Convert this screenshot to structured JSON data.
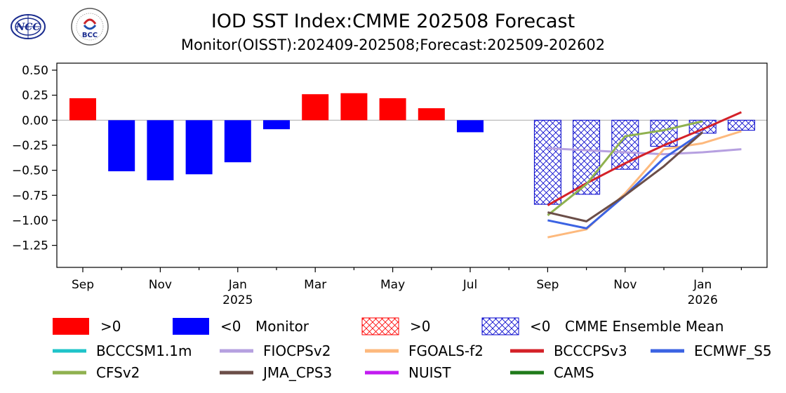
{
  "logos": {
    "left_text": "NCC",
    "right_text": "BCC"
  },
  "chart_data": {
    "type": "bar",
    "title": "IOD SST Index:CMME 202508 Forecast",
    "subtitle": "Monitor(OISST):202409-202508;Forecast:202509-202602",
    "xlabel": "",
    "ylabel": "",
    "ylim": [
      -1.47,
      0.57
    ],
    "yticks": [
      0.5,
      0.25,
      0.0,
      -0.25,
      -0.5,
      -0.75,
      -1.0,
      -1.25
    ],
    "ytick_labels": [
      "0.50",
      "0.25",
      "0.00",
      "−0.25",
      "−0.50",
      "−0.75",
      "−1.00",
      "−1.25"
    ],
    "months": [
      "2024-09",
      "2024-10",
      "2024-11",
      "2024-12",
      "2025-01",
      "2025-02",
      "2025-03",
      "2025-04",
      "2025-05",
      "2025-06",
      "2025-07",
      "2025-08",
      "2025-09",
      "2025-10",
      "2025-11",
      "2025-12",
      "2026-01",
      "2026-02"
    ],
    "xtick_labels": [
      {
        "month": "2024-09",
        "label": "Sep",
        "label2": ""
      },
      {
        "month": "2024-11",
        "label": "Nov",
        "label2": ""
      },
      {
        "month": "2025-01",
        "label": "Jan",
        "label2": "2025"
      },
      {
        "month": "2025-03",
        "label": "Mar",
        "label2": ""
      },
      {
        "month": "2025-05",
        "label": "May",
        "label2": ""
      },
      {
        "month": "2025-07",
        "label": "Jul",
        "label2": ""
      },
      {
        "month": "2025-09",
        "label": "Sep",
        "label2": ""
      },
      {
        "month": "2025-11",
        "label": "Nov",
        "label2": ""
      },
      {
        "month": "2026-01",
        "label": "Jan",
        "label2": "2026"
      }
    ],
    "monitor": {
      "months": [
        "2024-09",
        "2024-10",
        "2024-11",
        "2024-12",
        "2025-01",
        "2025-02",
        "2025-03",
        "2025-04",
        "2025-05",
        "2025-06",
        "2025-07",
        "2025-08"
      ],
      "values": [
        0.22,
        -0.51,
        -0.6,
        -0.54,
        -0.42,
        -0.09,
        0.26,
        0.27,
        0.22,
        0.12,
        -0.12,
        0.0
      ],
      "pos_color": "#ff0000",
      "neg_color": "#0000ff"
    },
    "ensemble_mean": {
      "months": [
        "2025-09",
        "2025-10",
        "2025-11",
        "2025-12",
        "2026-01",
        "2026-02"
      ],
      "values": [
        -0.84,
        -0.74,
        -0.49,
        -0.26,
        -0.13,
        -0.1
      ],
      "pos_color": "#ff0000",
      "neg_color": "#0000cc"
    },
    "series": [
      {
        "name": "BCCCSM1.1m",
        "color": "#1fc4c9",
        "months": [],
        "values": []
      },
      {
        "name": "FIOCPSv2",
        "color": "#b6a0e0",
        "months": [
          "2025-09",
          "2025-10",
          "2025-11",
          "2025-12",
          "2026-01",
          "2026-02"
        ],
        "values": [
          -0.28,
          -0.3,
          -0.32,
          -0.34,
          -0.32,
          -0.29
        ]
      },
      {
        "name": "FGOALS-f2",
        "color": "#fdb97d",
        "months": [
          "2025-09",
          "2025-10",
          "2025-11",
          "2025-12",
          "2026-01",
          "2026-02"
        ],
        "values": [
          -1.17,
          -1.09,
          -0.73,
          -0.29,
          -0.23,
          -0.11
        ]
      },
      {
        "name": "BCCCPSv3",
        "color": "#d42128",
        "months": [
          "2025-09",
          "2025-10",
          "2025-11",
          "2025-12",
          "2026-01",
          "2026-02"
        ],
        "values": [
          -0.85,
          -0.63,
          -0.43,
          -0.25,
          -0.09,
          0.08
        ]
      },
      {
        "name": "ECMWF_S5",
        "color": "#3b63e3",
        "months": [
          "2025-09",
          "2025-10",
          "2025-11",
          "2025-12",
          "2026-01"
        ],
        "values": [
          -1.0,
          -1.08,
          -0.75,
          -0.38,
          -0.12
        ]
      },
      {
        "name": "CFSv2",
        "color": "#8fb14f",
        "months": [
          "2025-09",
          "2025-10",
          "2025-11",
          "2025-12",
          "2026-01"
        ],
        "values": [
          -0.95,
          -0.64,
          -0.16,
          -0.1,
          -0.01
        ]
      },
      {
        "name": "JMA_CPS3",
        "color": "#6b4e48",
        "months": [
          "2025-09",
          "2025-10",
          "2025-11",
          "2025-12",
          "2026-01"
        ],
        "values": [
          -0.92,
          -1.01,
          -0.75,
          -0.46,
          -0.12
        ]
      },
      {
        "name": "NUIST",
        "color": "#c21bf0",
        "months": [],
        "values": []
      },
      {
        "name": "CAMS",
        "color": "#1f7a1a",
        "months": [],
        "values": []
      }
    ],
    "legend_bars": [
      {
        "label": ">0",
        "hatched": false,
        "color": "#ff0000",
        "suffix": ""
      },
      {
        "label": "<0",
        "hatched": false,
        "color": "#0000ff",
        "suffix": "Monitor"
      },
      {
        "label": ">0",
        "hatched": true,
        "color": "#ff0000",
        "suffix": ""
      },
      {
        "label": "<0",
        "hatched": true,
        "color": "#0000cc",
        "suffix": "CMME Ensemble Mean"
      }
    ],
    "legend_placement": "bottom",
    "grid": false,
    "zero_line": true
  }
}
